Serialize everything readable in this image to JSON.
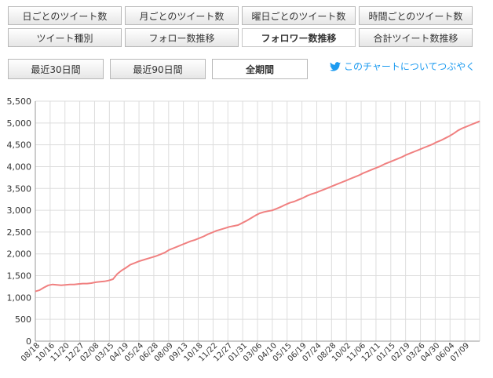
{
  "tabs": {
    "row1": [
      "日ごとのツイート数",
      "月ごとのツイート数",
      "曜日ごとのツイート数",
      "時間ごとのツイート数"
    ],
    "row2": [
      "ツイート種別",
      "フォロー数推移",
      "フォロワー数推移",
      "合計ツイート数推移"
    ],
    "active": "フォロワー数推移"
  },
  "ranges": {
    "last30": "最近30日間",
    "last90": "最近90日間",
    "all": "全期間",
    "active": "全期間"
  },
  "tweet_link": {
    "icon": "twitter-bird-icon",
    "label": "このチャートについてつぶやく"
  },
  "colors": {
    "line": "#f08080",
    "link": "#1d9bf0",
    "grid": "#dddddd"
  },
  "chart_data": {
    "type": "line",
    "title": "",
    "xlabel": "",
    "ylabel": "",
    "ylim": [
      0,
      5500
    ],
    "yticks": [
      "0",
      "500",
      "1,000",
      "1,500",
      "2,000",
      "2,500",
      "3,000",
      "3,500",
      "4,000",
      "4,500",
      "5,000",
      "5,500"
    ],
    "grid": true,
    "x_tick_labels": [
      "08/18",
      "10/16",
      "11/20",
      "12/27",
      "02/08",
      "03/15",
      "04/19",
      "05/24",
      "06/28",
      "08/09",
      "09/13",
      "10/18",
      "11/22",
      "12/27",
      "01/31",
      "03/06",
      "04/10",
      "05/15",
      "06/19",
      "07/24",
      "08/28",
      "10/02",
      "11/06",
      "12/11",
      "01/15",
      "02/19",
      "03/26",
      "04/30",
      "06/04",
      "07/09"
    ],
    "series": [
      {
        "values": [
          1140,
          1170,
          1230,
          1280,
          1300,
          1290,
          1280,
          1290,
          1300,
          1300,
          1310,
          1320,
          1320,
          1330,
          1350,
          1360,
          1370,
          1390,
          1420,
          1540,
          1620,
          1680,
          1750,
          1790,
          1830,
          1860,
          1890,
          1920,
          1950,
          1990,
          2030,
          2090,
          2130,
          2170,
          2210,
          2250,
          2290,
          2320,
          2360,
          2400,
          2450,
          2490,
          2530,
          2560,
          2590,
          2620,
          2640,
          2660,
          2710,
          2760,
          2820,
          2880,
          2930,
          2960,
          2980,
          3000,
          3040,
          3080,
          3130,
          3170,
          3200,
          3240,
          3280,
          3330,
          3370,
          3400,
          3440,
          3480,
          3520,
          3560,
          3600,
          3640,
          3680,
          3720,
          3760,
          3800,
          3850,
          3890,
          3930,
          3970,
          4010,
          4060,
          4100,
          4140,
          4180,
          4220,
          4270,
          4310,
          4350,
          4390,
          4430,
          4470,
          4510,
          4560,
          4600,
          4650,
          4700,
          4760,
          4830,
          4880,
          4920,
          4960,
          5000,
          5040
        ]
      }
    ]
  }
}
